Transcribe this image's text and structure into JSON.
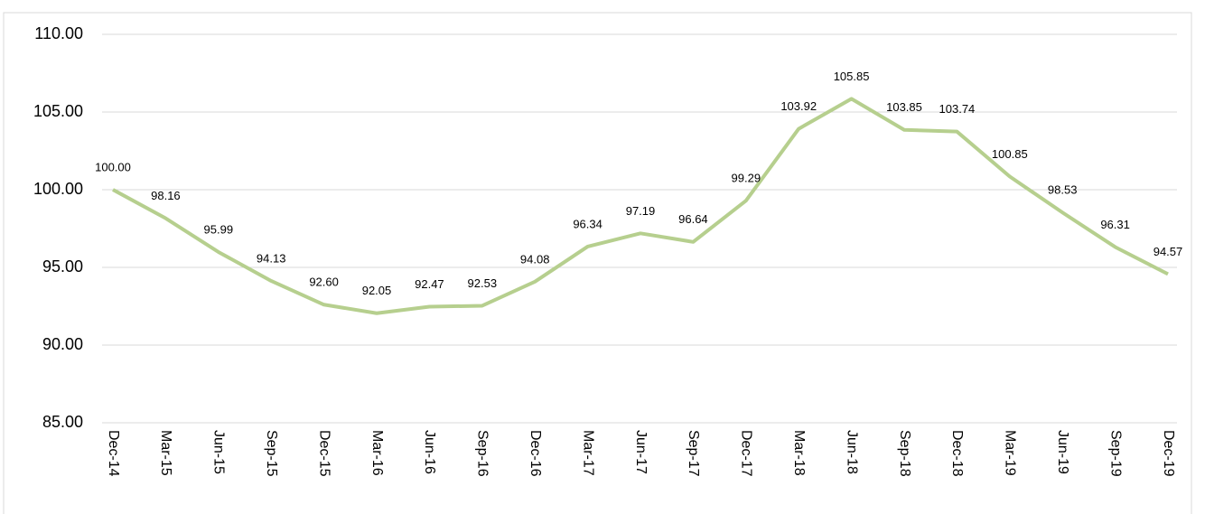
{
  "chart_data": {
    "type": "line",
    "categories": [
      "Dec-14",
      "Mar-15",
      "Jun-15",
      "Sep-15",
      "Dec-15",
      "Mar-16",
      "Jun-16",
      "Sep-16",
      "Dec-16",
      "Mar-17",
      "Jun-17",
      "Sep-17",
      "Dec-17",
      "Mar-18",
      "Jun-18",
      "Sep-18",
      "Dec-18",
      "Mar-19",
      "Jun-19",
      "Sep-19",
      "Dec-19"
    ],
    "values": [
      100,
      98.16,
      95.99,
      94.13,
      92.6,
      92.05,
      92.47,
      92.53,
      94.08,
      96.34,
      97.19,
      96.64,
      99.29,
      103.92,
      105.85,
      103.85,
      103.74,
      100.85,
      98.53,
      96.31,
      94.57
    ],
    "value_labels": [
      "100.00",
      "98.16",
      "95.99",
      "94.13",
      "92.60",
      "92.05",
      "92.47",
      "92.53",
      "94.08",
      "96.34",
      "97.19",
      "96.64",
      "99.29",
      "103.92",
      "105.85",
      "103.85",
      "103.74",
      "100.85",
      "98.53",
      "96.31",
      "94.57"
    ],
    "color": "#b6cf8e",
    "ylim": [
      85,
      110
    ],
    "yticks": [
      {
        "value": 85,
        "label": "85.00"
      },
      {
        "value": 90,
        "label": "90.00"
      },
      {
        "value": 95,
        "label": "95.00"
      },
      {
        "value": 100,
        "label": "100.00"
      },
      {
        "value": 105,
        "label": "105.00"
      },
      {
        "value": 110,
        "label": "110.00"
      }
    ],
    "grid": true
  }
}
